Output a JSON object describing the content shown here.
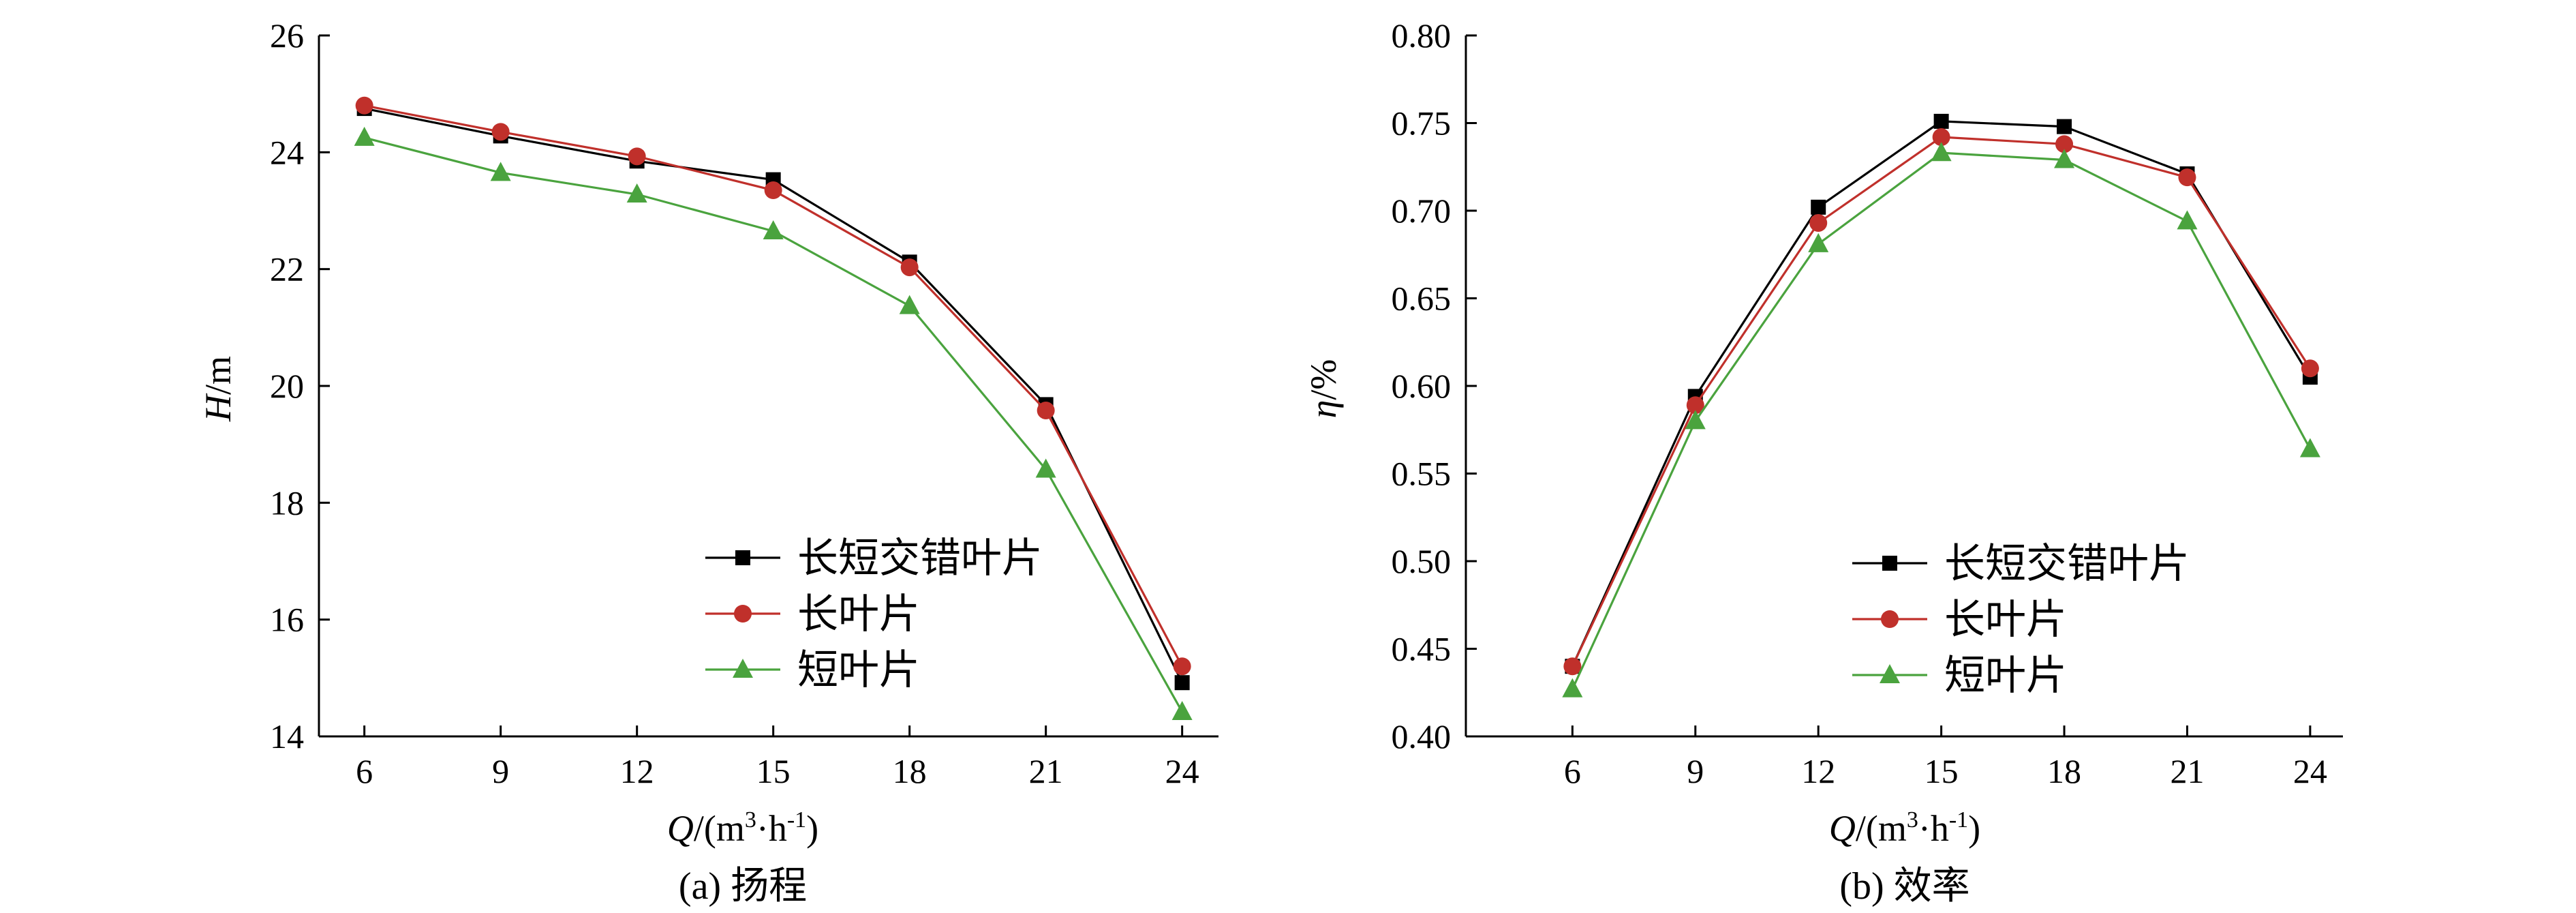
{
  "colors": {
    "series": [
      "#000000",
      "#c0302b",
      "#4aa33e"
    ]
  },
  "legend_labels": [
    "长短交错叶片",
    "长叶片",
    "短叶片"
  ],
  "chart_data": [
    {
      "type": "line",
      "caption": "(a) 扬程",
      "xlabel": {
        "italic": "Q",
        "rest": "/(m",
        "sup1": "3",
        "mid": "·h",
        "sup2": "-1",
        "end": ")"
      },
      "ylabel": {
        "italic": "H",
        "rest": "/m"
      },
      "x": [
        6,
        9,
        12,
        15,
        18,
        21,
        24
      ],
      "x_tick_labels": [
        "6",
        "9",
        "12",
        "15",
        "18",
        "21",
        "24"
      ],
      "ylim": [
        14,
        26
      ],
      "y_ticks": [
        14,
        16,
        18,
        20,
        22,
        24,
        26
      ],
      "y_tick_labels": [
        "14",
        "16",
        "18",
        "20",
        "22",
        "24",
        "26"
      ],
      "legend_position": "bottom-right",
      "series": [
        {
          "name": "长短交错叶片",
          "marker": "square",
          "values": [
            24.75,
            24.28,
            23.85,
            23.53,
            22.12,
            19.68,
            14.92
          ]
        },
        {
          "name": "长叶片",
          "marker": "circle",
          "values": [
            24.8,
            24.35,
            23.93,
            23.35,
            22.03,
            19.58,
            15.2
          ]
        },
        {
          "name": "短叶片",
          "marker": "triangle",
          "values": [
            24.25,
            23.65,
            23.28,
            22.65,
            21.37,
            18.57,
            14.42
          ]
        }
      ]
    },
    {
      "type": "line",
      "caption": "(b) 效率",
      "xlabel": {
        "italic": "Q",
        "rest": "/(m",
        "sup1": "3",
        "mid": "·h",
        "sup2": "-1",
        "end": ")"
      },
      "ylabel": {
        "italic": "η",
        "rest": "/%"
      },
      "x": [
        6,
        9,
        12,
        15,
        18,
        21,
        24
      ],
      "x_tick_labels": [
        "6",
        "9",
        "12",
        "15",
        "18",
        "21",
        "24"
      ],
      "ylim": [
        0.4,
        0.8
      ],
      "y_ticks": [
        0.4,
        0.45,
        0.5,
        0.55,
        0.6,
        0.65,
        0.7,
        0.75,
        0.8
      ],
      "y_tick_labels": [
        "0.40",
        "0.45",
        "0.50",
        "0.55",
        "0.60",
        "0.65",
        "0.70",
        "0.75",
        "0.80"
      ],
      "legend_position": "bottom-center",
      "series": [
        {
          "name": "长短交错叶片",
          "marker": "square",
          "values": [
            0.44,
            0.594,
            0.702,
            0.751,
            0.748,
            0.721,
            0.605
          ]
        },
        {
          "name": "长叶片",
          "marker": "circle",
          "values": [
            0.44,
            0.589,
            0.693,
            0.742,
            0.738,
            0.719,
            0.61
          ]
        },
        {
          "name": "短叶片",
          "marker": "triangle",
          "values": [
            0.427,
            0.58,
            0.681,
            0.733,
            0.729,
            0.694,
            0.564
          ]
        }
      ]
    }
  ]
}
